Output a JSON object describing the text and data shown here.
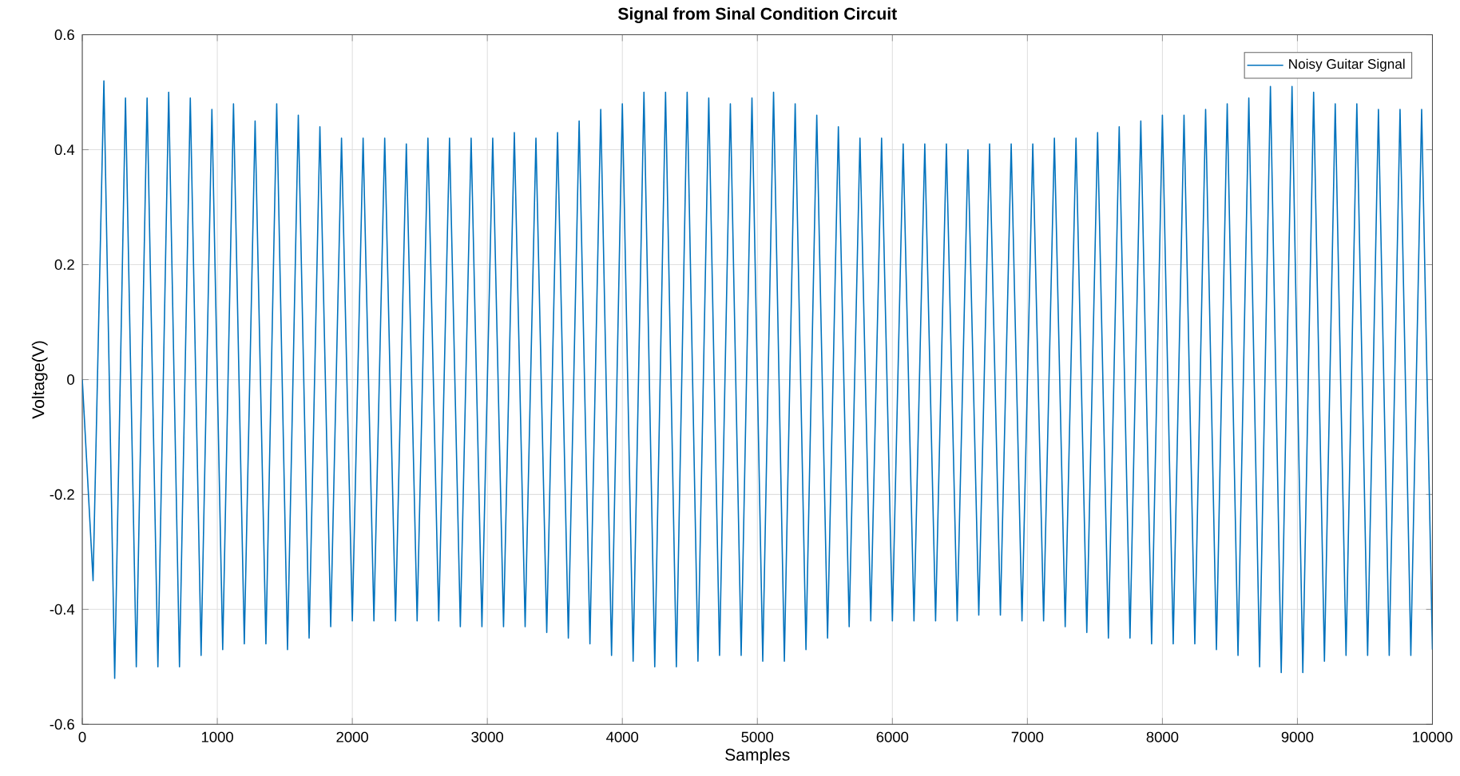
{
  "chart_data": {
    "type": "line",
    "title": "Signal from Sinal Condition Circuit",
    "xlabel": "Samples",
    "ylabel": "Voltage(V)",
    "x": [
      0,
      80,
      160,
      240,
      320,
      400,
      480,
      560,
      640,
      720,
      800,
      880,
      960,
      1040,
      1120,
      1200,
      1280,
      1360,
      1440,
      1520,
      1600,
      1680,
      1760,
      1840,
      1920,
      2000,
      2080,
      2160,
      2240,
      2320,
      2400,
      2480,
      2560,
      2640,
      2720,
      2800,
      2880,
      2960,
      3040,
      3120,
      3200,
      3280,
      3360,
      3440,
      3520,
      3600,
      3680,
      3760,
      3840,
      3920,
      4000,
      4080,
      4160,
      4240,
      4320,
      4400,
      4480,
      4560,
      4640,
      4720,
      4800,
      4880,
      4960,
      5040,
      5120,
      5200,
      5280,
      5360,
      5440,
      5520,
      5600,
      5680,
      5760,
      5840,
      5920,
      6000,
      6080,
      6160,
      6240,
      6320,
      6400,
      6480,
      6560,
      6640,
      6720,
      6800,
      6880,
      6960,
      7040,
      7120,
      7200,
      7280,
      7360,
      7440,
      7520,
      7600,
      7680,
      7760,
      7840,
      7920,
      8000,
      8080,
      8160,
      8240,
      8320,
      8400,
      8480,
      8560,
      8640,
      8720,
      8800,
      8880,
      8960,
      9040,
      9120,
      9200,
      9280,
      9360,
      9440,
      9520,
      9600,
      9680,
      9760,
      9840,
      9920,
      10000
    ],
    "series": [
      {
        "name": "Noisy Guitar Signal",
        "color": "#0072bd",
        "values": [
          0.0,
          -0.35,
          0.52,
          -0.52,
          0.49,
          -0.5,
          0.49,
          -0.5,
          0.5,
          -0.5,
          0.49,
          -0.48,
          0.47,
          -0.47,
          0.48,
          -0.46,
          0.45,
          -0.46,
          0.48,
          -0.47,
          0.46,
          -0.45,
          0.44,
          -0.43,
          0.42,
          -0.42,
          0.42,
          -0.42,
          0.42,
          -0.42,
          0.41,
          -0.42,
          0.42,
          -0.42,
          0.42,
          -0.43,
          0.42,
          -0.43,
          0.42,
          -0.43,
          0.43,
          -0.43,
          0.42,
          -0.44,
          0.43,
          -0.45,
          0.45,
          -0.46,
          0.47,
          -0.48,
          0.48,
          -0.49,
          0.5,
          -0.5,
          0.5,
          -0.5,
          0.5,
          -0.49,
          0.49,
          -0.48,
          0.48,
          -0.48,
          0.49,
          -0.49,
          0.5,
          -0.49,
          0.48,
          -0.47,
          0.46,
          -0.45,
          0.44,
          -0.43,
          0.42,
          -0.42,
          0.42,
          -0.42,
          0.41,
          -0.42,
          0.41,
          -0.42,
          0.41,
          -0.42,
          0.4,
          -0.41,
          0.41,
          -0.41,
          0.41,
          -0.42,
          0.41,
          -0.42,
          0.42,
          -0.43,
          0.42,
          -0.44,
          0.43,
          -0.45,
          0.44,
          -0.45,
          0.45,
          -0.46,
          0.46,
          -0.46,
          0.46,
          -0.46,
          0.47,
          -0.47,
          0.48,
          -0.48,
          0.49,
          -0.5,
          0.51,
          -0.51,
          0.51,
          -0.51,
          0.5,
          -0.49,
          0.48,
          -0.48,
          0.48,
          -0.48,
          0.47,
          -0.48,
          0.47,
          -0.48,
          0.47,
          -0.47
        ]
      }
    ],
    "xlim": [
      0,
      10000
    ],
    "ylim": [
      -0.6,
      0.6
    ],
    "xticks": [
      0,
      1000,
      2000,
      3000,
      4000,
      5000,
      6000,
      7000,
      8000,
      9000,
      10000
    ],
    "yticks": [
      -0.6,
      -0.4,
      -0.2,
      0,
      0.2,
      0.4,
      0.6
    ],
    "grid": true,
    "legend": "top right",
    "marker": "none",
    "line_style": "solid"
  }
}
